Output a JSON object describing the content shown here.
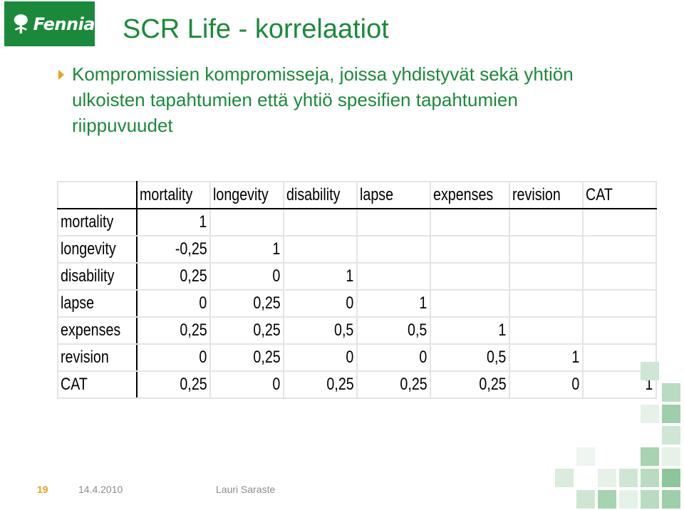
{
  "logo": {
    "text": "Fennia"
  },
  "title": "SCR Life - korrelaatiot",
  "bullet": "Kompromissien kompromisseja, joissa yhdistyvät sekä yhtiön ulkoisten tapahtumien että yhtiö spesifien tapahtumien riippuvuudet",
  "table": {
    "headers": [
      "mortality",
      "longevity",
      "disability",
      "lapse",
      "expenses",
      "revision",
      "CAT"
    ],
    "rows": [
      {
        "label": "mortality",
        "values": [
          "1",
          "",
          "",
          "",
          "",
          "",
          ""
        ]
      },
      {
        "label": "longevity",
        "values": [
          "-0,25",
          "1",
          "",
          "",
          "",
          "",
          ""
        ]
      },
      {
        "label": "disability",
        "values": [
          "0,25",
          "0",
          "1",
          "",
          "",
          "",
          ""
        ]
      },
      {
        "label": "lapse",
        "values": [
          "0",
          "0,25",
          "0",
          "1",
          "",
          "",
          ""
        ]
      },
      {
        "label": "expenses",
        "values": [
          "0,25",
          "0,25",
          "0,5",
          "0,5",
          "1",
          "",
          ""
        ]
      },
      {
        "label": "revision",
        "values": [
          "0",
          "0,25",
          "0",
          "0",
          "0,5",
          "1",
          ""
        ]
      },
      {
        "label": "CAT",
        "values": [
          "0,25",
          "0",
          "0,25",
          "0,25",
          "0,25",
          "0",
          "1"
        ]
      }
    ]
  },
  "footer": {
    "page": "19",
    "date": "14.4.2010",
    "author": "Lauri Saraste"
  },
  "colors": {
    "brand_green": "#1a8a3a",
    "accent_orange": "#e8a317",
    "footer_gray": "#8c8c8c"
  }
}
